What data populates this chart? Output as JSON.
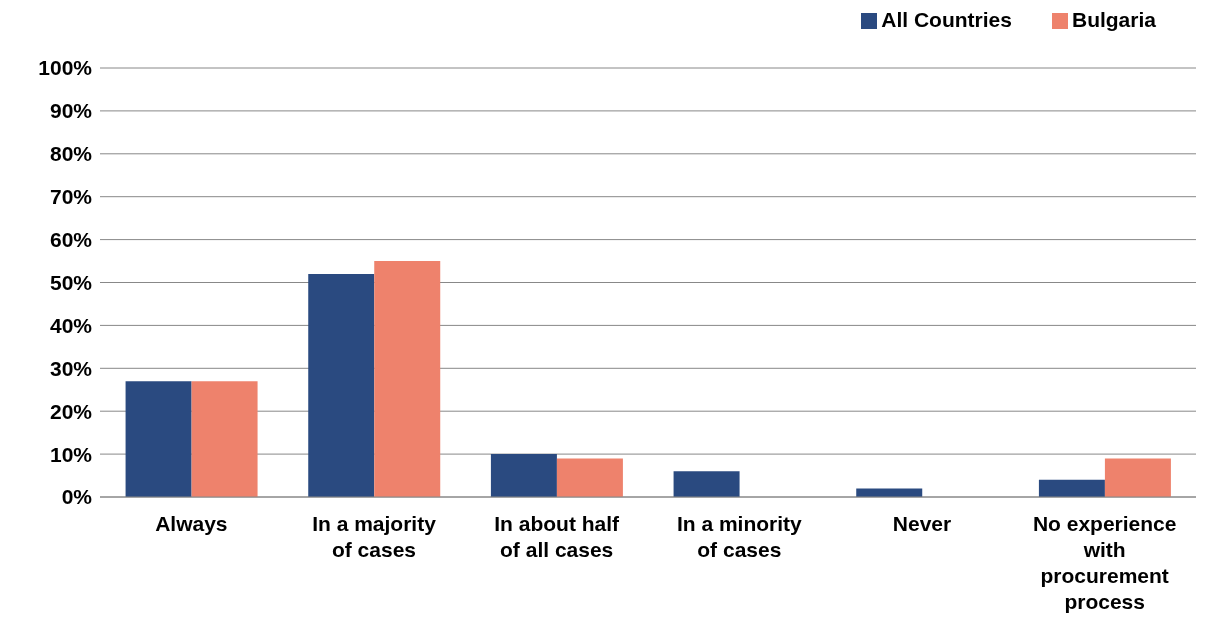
{
  "chart_data": {
    "type": "bar",
    "categories": [
      "Always",
      "In a majority of cases",
      "In about half of all cases",
      "In a minority of cases",
      "Never",
      "No experience with procurement process"
    ],
    "series": [
      {
        "name": "All Countries",
        "color": "#2a4a80",
        "values": [
          27,
          52,
          10,
          6,
          2,
          4
        ]
      },
      {
        "name": "Bulgaria",
        "color": "#ee826c",
        "values": [
          27,
          55,
          9,
          0,
          0,
          9
        ]
      }
    ],
    "ylim": [
      0,
      100
    ],
    "yticks": [
      {
        "value": 0,
        "label": "0%"
      },
      {
        "value": 10,
        "label": "10%"
      },
      {
        "value": 20,
        "label": "20%"
      },
      {
        "value": 30,
        "label": "30%"
      },
      {
        "value": 40,
        "label": "40%"
      },
      {
        "value": 50,
        "label": "50%"
      },
      {
        "value": 60,
        "label": "60%"
      },
      {
        "value": 70,
        "label": "70%"
      },
      {
        "value": 80,
        "label": "80%"
      },
      {
        "value": 90,
        "label": "90%"
      },
      {
        "value": 100,
        "label": "100%"
      }
    ],
    "grid": "y",
    "legend": "top right"
  }
}
